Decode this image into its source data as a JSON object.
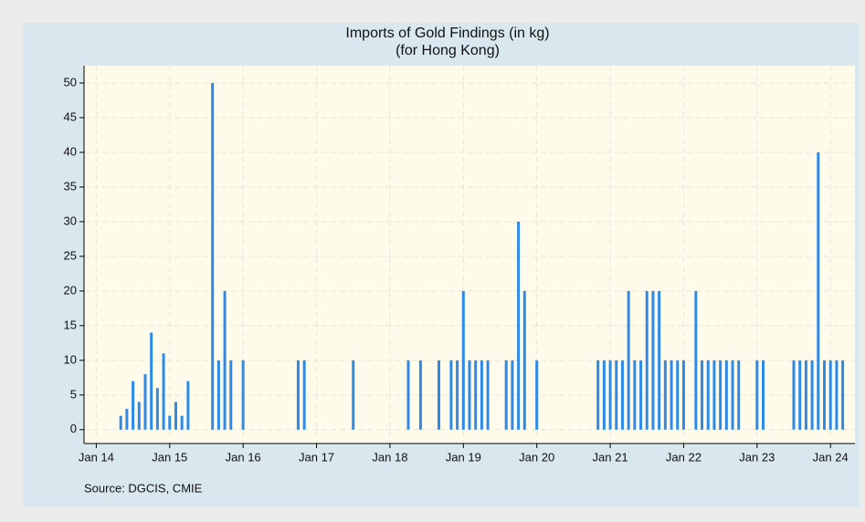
{
  "chart_data": {
    "type": "bar",
    "title": "Imports of Gold Findings (in kg)",
    "subtitle": "(for Hong Kong)",
    "annotation": "Source: DGCIS, CMIE",
    "color": "#2e8ae6",
    "grid": true,
    "x": [
      "2014-05",
      "2014-06",
      "2014-07",
      "2014-08",
      "2014-09",
      "2014-10",
      "2014-11",
      "2014-12",
      "2015-01",
      "2015-02",
      "2015-03",
      "2015-04",
      "2015-08",
      "2015-09",
      "2015-10",
      "2015-11",
      "2016-01",
      "2016-10",
      "2016-11",
      "2017-07",
      "2018-04",
      "2018-06",
      "2018-09",
      "2018-11",
      "2018-12",
      "2019-01",
      "2019-02",
      "2019-03",
      "2019-04",
      "2019-05",
      "2019-08",
      "2019-09",
      "2019-10",
      "2019-11",
      "2020-01",
      "2020-11",
      "2020-12",
      "2021-01",
      "2021-02",
      "2021-03",
      "2021-04",
      "2021-05",
      "2021-06",
      "2021-07",
      "2021-08",
      "2021-09",
      "2021-10",
      "2021-11",
      "2021-12",
      "2022-01",
      "2022-03",
      "2022-04",
      "2022-05",
      "2022-06",
      "2022-07",
      "2022-08",
      "2022-09",
      "2022-10",
      "2023-01",
      "2023-02",
      "2023-07",
      "2023-08",
      "2023-09",
      "2023-10",
      "2023-11",
      "2023-12",
      "2024-01",
      "2024-02",
      "2024-03"
    ],
    "values": [
      2,
      3,
      7,
      4,
      8,
      14,
      6,
      11,
      2,
      4,
      2,
      7,
      50,
      10,
      20,
      10,
      10,
      10,
      10,
      10,
      10,
      10,
      10,
      10,
      10,
      20,
      10,
      10,
      10,
      10,
      10,
      10,
      30,
      20,
      10,
      10,
      10,
      10,
      10,
      10,
      20,
      10,
      10,
      20,
      20,
      20,
      10,
      10,
      10,
      10,
      20,
      10,
      10,
      10,
      10,
      10,
      10,
      10,
      10,
      10,
      10,
      10,
      10,
      10,
      40,
      10,
      10,
      10,
      10
    ],
    "xlim": [
      "2013-11",
      "2024-05"
    ],
    "xticks": [
      {
        "value": "2014-01",
        "label": "Jan 14"
      },
      {
        "value": "2015-01",
        "label": "Jan 15"
      },
      {
        "value": "2016-01",
        "label": "Jan 16"
      },
      {
        "value": "2017-01",
        "label": "Jan 17"
      },
      {
        "value": "2018-01",
        "label": "Jan 18"
      },
      {
        "value": "2019-01",
        "label": "Jan 19"
      },
      {
        "value": "2020-01",
        "label": "Jan 20"
      },
      {
        "value": "2021-01",
        "label": "Jan 21"
      },
      {
        "value": "2022-01",
        "label": "Jan 22"
      },
      {
        "value": "2023-01",
        "label": "Jan 23"
      },
      {
        "value": "2024-01",
        "label": "Jan 24"
      }
    ],
    "ylim": [
      -2,
      52.5
    ],
    "yticks": [
      0,
      5,
      10,
      15,
      20,
      25,
      30,
      35,
      40,
      45,
      50
    ]
  }
}
